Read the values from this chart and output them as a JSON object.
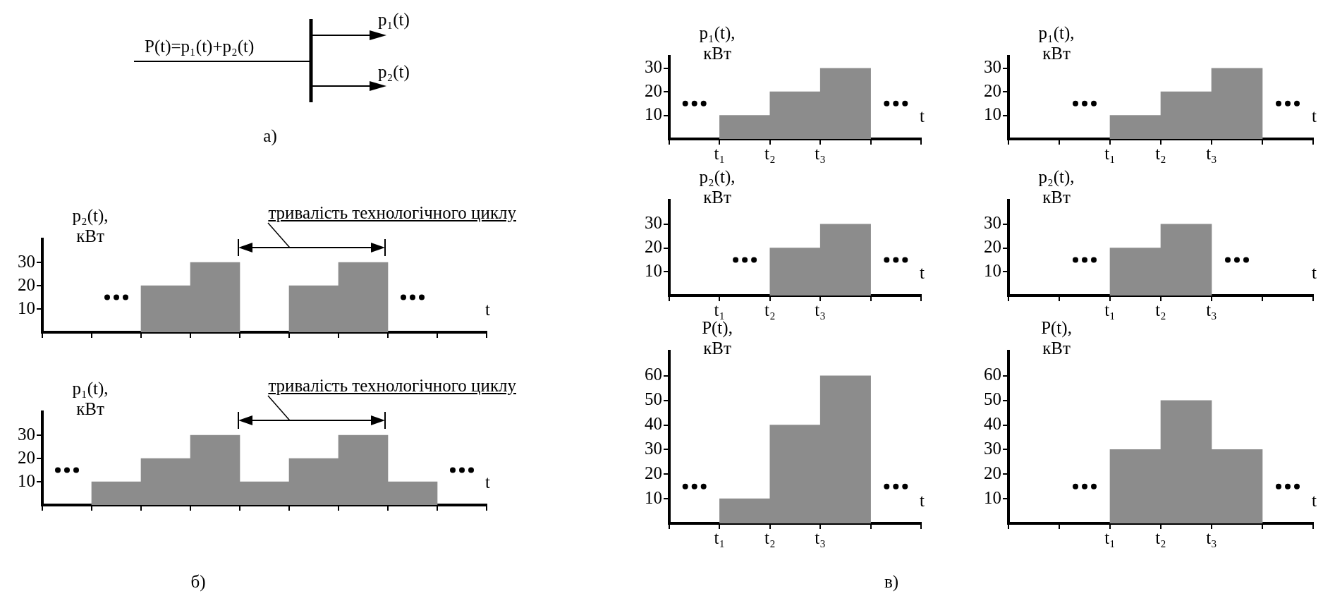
{
  "chart_data": [
    {
      "type": "other",
      "annotations": [
        "P(t)=p₁(t)+p₂(t)",
        "p₁(t)",
        "p₂(t)",
        "а)"
      ]
    },
    {
      "type": "bar",
      "ylabel": "p₂(t), кВт",
      "xlabel": "t",
      "categories": [
        null,
        null,
        null,
        null,
        null,
        null,
        null,
        null,
        null
      ],
      "values": [
        null,
        null,
        20,
        30,
        null,
        20,
        30,
        null,
        null
      ],
      "color": "#8c8c8c",
      "ylim": [
        0,
        40
      ],
      "yticks": [
        10,
        20,
        30
      ],
      "annotations": [
        "тривалість технологічного циклу"
      ]
    },
    {
      "type": "bar",
      "ylabel": "p₁(t), кВт",
      "xlabel": "t",
      "categories": [
        null,
        null,
        null,
        null,
        null,
        null,
        null,
        null,
        null
      ],
      "values": [
        null,
        10,
        20,
        30,
        10,
        20,
        30,
        10,
        null
      ],
      "color": "#8c8c8c",
      "ylim": [
        0,
        40
      ],
      "yticks": [
        10,
        20,
        30
      ],
      "annotations": [
        "тривалість технологічного циклу",
        "б)"
      ]
    },
    {
      "type": "bar",
      "ylabel": "p₁(t), кВт",
      "xlabel": "t",
      "categories": [
        null,
        "t₁",
        "t₂",
        "t₃",
        null
      ],
      "values": [
        null,
        10,
        20,
        30,
        null
      ],
      "color": "#8c8c8c",
      "ylim": [
        0,
        35
      ],
      "yticks": [
        10,
        20,
        30
      ]
    },
    {
      "type": "bar",
      "ylabel": "p₁(t), кВт",
      "xlabel": "t",
      "categories": [
        null,
        null,
        "t₁",
        "t₂",
        "t₃",
        null
      ],
      "values": [
        null,
        null,
        10,
        20,
        30,
        null
      ],
      "color": "#8c8c8c",
      "ylim": [
        0,
        35
      ],
      "yticks": [
        10,
        20,
        30
      ]
    },
    {
      "type": "bar",
      "ylabel": "p₂(t), кВт",
      "xlabel": "t",
      "categories": [
        null,
        "t₁",
        "t₂",
        "t₃",
        null
      ],
      "values": [
        null,
        null,
        20,
        30,
        null
      ],
      "color": "#8c8c8c",
      "ylim": [
        0,
        40
      ],
      "yticks": [
        10,
        20,
        30
      ]
    },
    {
      "type": "bar",
      "ylabel": "p₂(t), кВт",
      "xlabel": "t",
      "categories": [
        null,
        null,
        "t₁",
        "t₂",
        "t₃",
        null
      ],
      "values": [
        null,
        null,
        20,
        30,
        null,
        null
      ],
      "color": "#8c8c8c",
      "ylim": [
        0,
        40
      ],
      "yticks": [
        10,
        20,
        30
      ]
    },
    {
      "type": "bar",
      "ylabel": "P(t), кВт",
      "xlabel": "t",
      "categories": [
        null,
        "t₁",
        "t₂",
        "t₃",
        null
      ],
      "values": [
        null,
        10,
        40,
        60,
        null
      ],
      "color": "#8c8c8c",
      "ylim": [
        0,
        70
      ],
      "yticks": [
        10,
        20,
        30,
        40,
        50,
        60
      ],
      "annotations": [
        "в)"
      ]
    },
    {
      "type": "bar",
      "ylabel": "P(t), кВт",
      "xlabel": "t",
      "categories": [
        null,
        null,
        "t₁",
        "t₂",
        "t₃",
        null
      ],
      "values": [
        null,
        null,
        30,
        50,
        30,
        null
      ],
      "color": "#8c8c8c",
      "ylim": [
        0,
        70
      ],
      "yticks": [
        10,
        20,
        30,
        40,
        50,
        60
      ]
    }
  ]
}
